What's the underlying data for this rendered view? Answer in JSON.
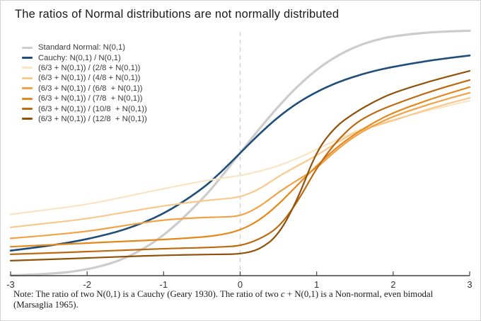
{
  "chart_data": {
    "type": "line",
    "title": "The ratios of Normal distributions are not normally distributed",
    "note": {
      "prefix": "Note: The ratio of two N(0,1) is a Cauchy (Geary 1930). The ratio of two ",
      "italic": "c",
      "suffix": " + N(0,1) is a Non-normal, even bimodal (Marsaglia 1965)."
    },
    "xlabel": "",
    "ylabel": "",
    "xlim": [
      -3,
      3
    ],
    "ylim": [
      0,
      1
    ],
    "grid": false,
    "legend_position": "top-left",
    "x_ticks": [
      "-3",
      "-2",
      "-1",
      "0",
      "1",
      "2",
      "3"
    ],
    "vline_x": 0,
    "x": [
      -3,
      -2.5,
      -2,
      -1.5,
      -1,
      -0.5,
      -0.25,
      0,
      0.25,
      0.5,
      0.75,
      1,
      1.25,
      1.5,
      1.75,
      2,
      2.5,
      3
    ],
    "series": [
      {
        "name": "Standard Normal: N(0,1)",
        "color": "#cccccc",
        "width": 3.2,
        "values": [
          0.001,
          0.006,
          0.023,
          0.067,
          0.159,
          0.309,
          0.401,
          0.5,
          0.599,
          0.691,
          0.773,
          0.841,
          0.894,
          0.933,
          0.96,
          0.977,
          0.994,
          0.999
        ]
      },
      {
        "name": "Cauchy: N(0,1) / N(0,1)",
        "color": "#1e4e79",
        "width": 2.6,
        "values": [
          0.102,
          0.121,
          0.148,
          0.187,
          0.25,
          0.352,
          0.422,
          0.5,
          0.578,
          0.648,
          0.705,
          0.75,
          0.786,
          0.813,
          0.835,
          0.852,
          0.879,
          0.898
        ]
      },
      {
        "name": "(6/3 + N(0,1)) / (2/8 + N(0,1))",
        "color": "#fbe4c4",
        "width": 2.2,
        "values": [
          0.25,
          0.27,
          0.29,
          0.322,
          0.355,
          0.385,
          0.397,
          0.408,
          0.425,
          0.448,
          0.478,
          0.515,
          0.552,
          0.588,
          0.614,
          0.636,
          0.678,
          0.713
        ]
      },
      {
        "name": "(6/3 + N(0,1)) / (4/8 + N(0,1))",
        "color": "#f8c88c",
        "width": 2.2,
        "values": [
          0.197,
          0.214,
          0.232,
          0.259,
          0.285,
          0.305,
          0.312,
          0.32,
          0.352,
          0.405,
          0.448,
          0.49,
          0.54,
          0.585,
          0.61,
          0.632,
          0.684,
          0.725
        ]
      },
      {
        "name": "(6/3 + N(0,1)) / (6/8  + N(0,1))",
        "color": "#f1a246",
        "width": 2.2,
        "values": [
          0.152,
          0.165,
          0.18,
          0.205,
          0.228,
          0.237,
          0.239,
          0.242,
          0.28,
          0.34,
          0.39,
          0.438,
          0.51,
          0.57,
          0.613,
          0.65,
          0.703,
          0.746
        ]
      },
      {
        "name": "(6/3 + N(0,1)) / (7/8  + N(0,1))",
        "color": "#e5881c",
        "width": 2.2,
        "values": [
          0.118,
          0.125,
          0.133,
          0.14,
          0.147,
          0.157,
          0.166,
          0.185,
          0.225,
          0.29,
          0.37,
          0.448,
          0.52,
          0.578,
          0.625,
          0.665,
          0.722,
          0.769
        ]
      },
      {
        "name": "(6/3 + N(0,1)) / (10/8  + N(0,1))",
        "color": "#bc690f",
        "width": 2.2,
        "values": [
          0.087,
          0.092,
          0.098,
          0.104,
          0.11,
          0.114,
          0.117,
          0.121,
          0.148,
          0.195,
          0.3,
          0.44,
          0.545,
          0.621,
          0.665,
          0.697,
          0.753,
          0.798
        ]
      },
      {
        "name": "(6/3 + N(0,1)) / (12/8  + N(0,1))",
        "color": "#90520a",
        "width": 2.2,
        "values": [
          0.061,
          0.066,
          0.072,
          0.078,
          0.083,
          0.086,
          0.087,
          0.088,
          0.105,
          0.165,
          0.31,
          0.51,
          0.61,
          0.665,
          0.71,
          0.746,
          0.795,
          0.835
        ]
      }
    ],
    "colors": {
      "axis": "#1a1a1a",
      "tick": "#444444",
      "tick_label": "#333333",
      "dashed_line": "#cccccc",
      "frame_border": "#d4d4d4",
      "background": "#ffffff"
    }
  }
}
